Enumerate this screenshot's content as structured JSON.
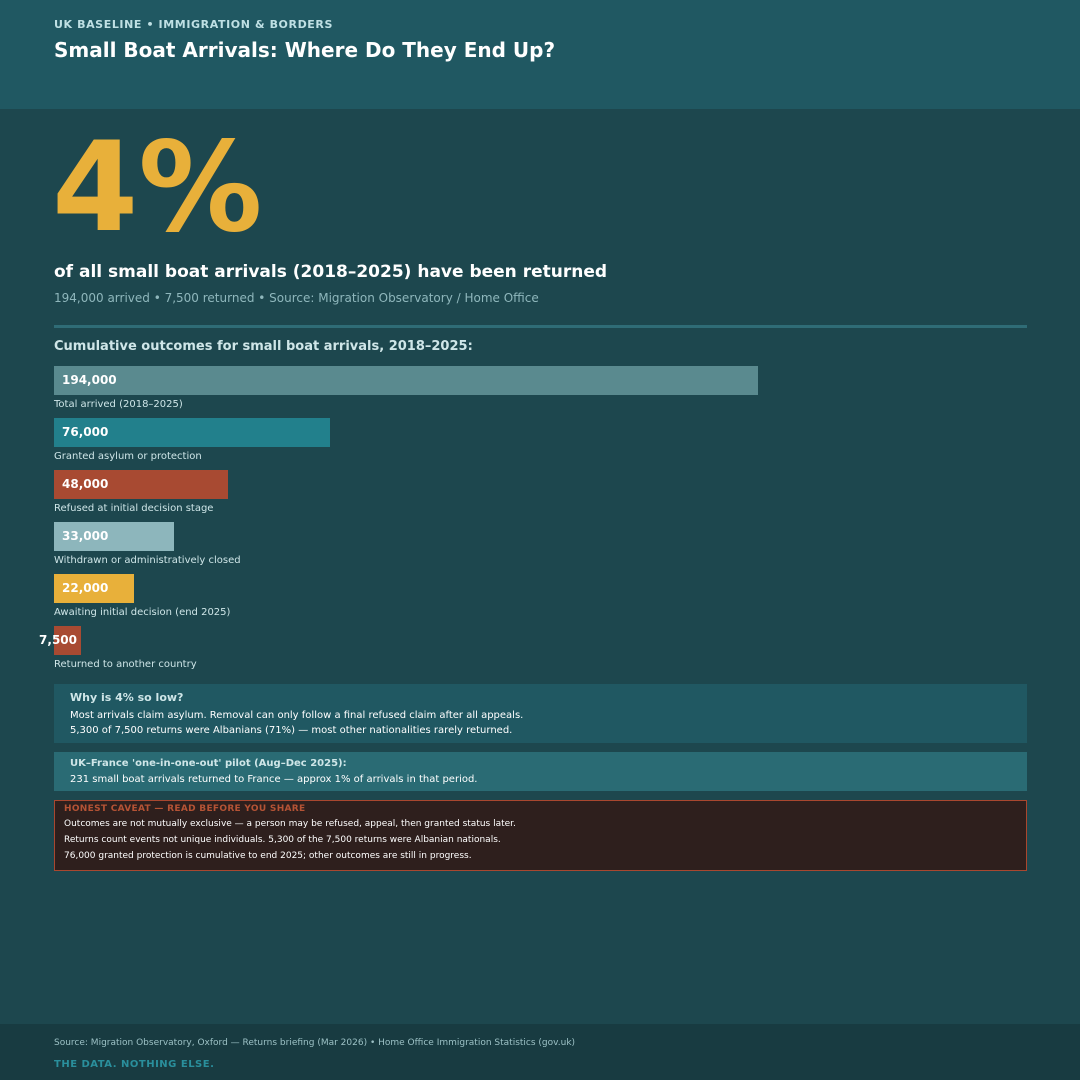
{
  "header": {
    "kicker": "UK BASELINE  •  IMMIGRATION & BORDERS",
    "title": "Small Boat Arrivals: Where Do They End Up?"
  },
  "hero": {
    "big_number": "4%",
    "headline": "of all small boat arrivals (2018–2025) have been returned",
    "subline": "194,000 arrived  •  7,500 returned  •  Source: Migration Observatory / Home Office"
  },
  "chart_data": {
    "type": "bar",
    "orientation": "horizontal",
    "title": "Cumulative outcomes for small boat arrivals, 2018–2025:",
    "categories": [
      "Total arrived (2018–2025)",
      "Granted asylum or protection",
      "Refused at initial decision stage",
      "Withdrawn or administratively closed",
      "Awaiting initial decision (end 2025)",
      "Returned to another country"
    ],
    "values": [
      194000,
      76000,
      48000,
      33000,
      22000,
      7500
    ],
    "value_labels": [
      "194,000",
      "76,000",
      "48,000",
      "33,000",
      "22,000",
      "7,500"
    ],
    "colors": [
      "#5a8a8f",
      "#22808c",
      "#a84a32",
      "#8db6bc",
      "#e8b03a",
      "#a84a32"
    ],
    "xlim": [
      0,
      268000
    ],
    "grid": false
  },
  "why_box": {
    "heading": "Why is 4% so low?",
    "lines": [
      "Most arrivals claim asylum. Removal can only follow a final refused claim after all appeals.",
      "5,300 of 7,500 returns were Albanians (71%) — most other nationalities rarely returned."
    ]
  },
  "pilot_box": {
    "heading": "UK–France 'one-in-one-out' pilot (Aug–Dec 2025):",
    "text": "231 small boat arrivals returned to France — approx 1% of arrivals in that period."
  },
  "caveat": {
    "heading": "HONEST CAVEAT — READ BEFORE YOU SHARE",
    "lines": [
      "Outcomes are not mutually exclusive — a person may be refused, appeal, then granted status later.",
      "Returns count events not unique individuals. 5,300 of the 7,500 returns were Albanian nationals.",
      "76,000 granted protection is cumulative to end 2025; other outcomes are still in progress."
    ]
  },
  "footer": {
    "source": "Source: Migration Observatory, Oxford — Returns briefing (Mar 2026)  •  Home Office Immigration Statistics (gov.uk)",
    "tagline": "THE DATA. NOTHING ELSE."
  },
  "colors": {
    "accent": "#e8b03a",
    "background": "#1d474e",
    "header": "#205862"
  }
}
